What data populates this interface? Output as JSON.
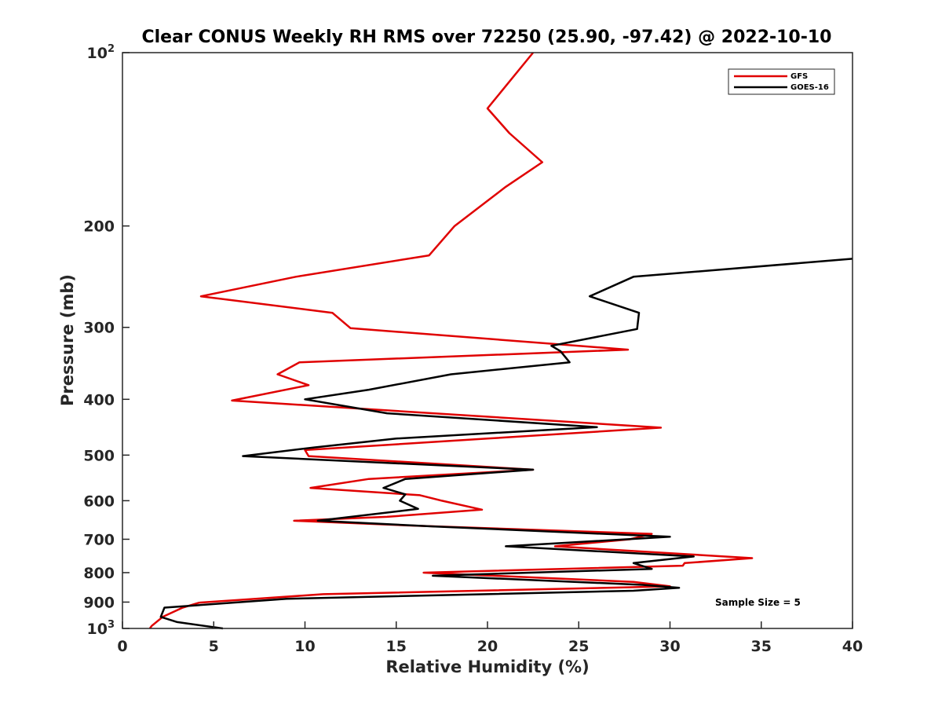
{
  "chart_data": {
    "type": "line",
    "title": "Clear CONUS Weekly RH RMS over 72250 (25.90, -97.42) @ 2022-10-10",
    "xlabel": "Relative Humidity (%)",
    "ylabel": "Pressure (mb)",
    "xlim": [
      0,
      40
    ],
    "ylim": [
      100,
      1000
    ],
    "yscale": "log",
    "y_reversed": true,
    "grid": false,
    "legend_position": "top-right",
    "x_ticks": [
      "0",
      "5",
      "10",
      "15",
      "20",
      "25",
      "30",
      "35",
      "40"
    ],
    "y_ticks": [
      {
        "value": 100,
        "base": "10",
        "exp": "2"
      },
      {
        "value": 200,
        "label": "200"
      },
      {
        "value": 300,
        "label": "300"
      },
      {
        "value": 400,
        "label": "400"
      },
      {
        "value": 500,
        "label": "500"
      },
      {
        "value": 600,
        "label": "600"
      },
      {
        "value": 700,
        "label": "700"
      },
      {
        "value": 800,
        "label": "800"
      },
      {
        "value": 900,
        "label": "900"
      },
      {
        "value": 1000,
        "base": "10",
        "exp": "3"
      }
    ],
    "annotation": "Sample Size = 5",
    "series": [
      {
        "name": "GFS",
        "color": "#e00000",
        "points": [
          [
            22.5,
            100
          ],
          [
            20.0,
            125
          ],
          [
            21.2,
            138
          ],
          [
            23.0,
            155
          ],
          [
            21.0,
            171
          ],
          [
            18.2,
            200
          ],
          [
            16.8,
            225
          ],
          [
            9.5,
            245
          ],
          [
            4.3,
            265
          ],
          [
            11.5,
            283
          ],
          [
            12.5,
            301
          ],
          [
            27.7,
            328
          ],
          [
            9.7,
            345
          ],
          [
            8.5,
            362
          ],
          [
            10.2,
            378
          ],
          [
            6.0,
            402
          ],
          [
            29.5,
            448
          ],
          [
            20.0,
            468
          ],
          [
            10.0,
            490
          ],
          [
            10.2,
            502
          ],
          [
            22.5,
            530
          ],
          [
            13.5,
            550
          ],
          [
            10.3,
            570
          ],
          [
            16.3,
            587
          ],
          [
            17.5,
            600
          ],
          [
            19.7,
            622
          ],
          [
            14.5,
            640
          ],
          [
            9.4,
            650
          ],
          [
            15.5,
            662
          ],
          [
            29.0,
            685
          ],
          [
            27.8,
            700
          ],
          [
            23.7,
            720
          ],
          [
            34.5,
            755
          ],
          [
            30.8,
            770
          ],
          [
            30.7,
            778
          ],
          [
            16.5,
            800
          ],
          [
            28.0,
            830
          ],
          [
            30.0,
            845
          ],
          [
            11.0,
            872
          ],
          [
            4.2,
            902
          ],
          [
            3.3,
            920
          ],
          [
            2.2,
            955
          ],
          [
            1.6,
            990
          ],
          [
            1.5,
            1000
          ]
        ]
      },
      {
        "name": "GOES-16",
        "color": "#000000",
        "points": [
          [
            40.0,
            228
          ],
          [
            28.0,
            245
          ],
          [
            25.6,
            265
          ],
          [
            28.3,
            283
          ],
          [
            28.2,
            302
          ],
          [
            23.5,
            323
          ],
          [
            24.0,
            330
          ],
          [
            24.5,
            345
          ],
          [
            18.0,
            362
          ],
          [
            13.5,
            385
          ],
          [
            10.0,
            400
          ],
          [
            14.5,
            423
          ],
          [
            26.0,
            447
          ],
          [
            15.0,
            468
          ],
          [
            10.5,
            485
          ],
          [
            6.6,
            502
          ],
          [
            22.5,
            530
          ],
          [
            15.5,
            550
          ],
          [
            14.3,
            570
          ],
          [
            15.5,
            585
          ],
          [
            15.2,
            600
          ],
          [
            16.2,
            620
          ],
          [
            10.7,
            650
          ],
          [
            17.0,
            665
          ],
          [
            30.0,
            693
          ],
          [
            21.0,
            720
          ],
          [
            31.3,
            750
          ],
          [
            28.0,
            770
          ],
          [
            29.0,
            788
          ],
          [
            17.0,
            810
          ],
          [
            28.5,
            840
          ],
          [
            30.5,
            850
          ],
          [
            28.0,
            860
          ],
          [
            9.0,
            888
          ],
          [
            2.3,
            920
          ],
          [
            2.1,
            955
          ],
          [
            3.0,
            975
          ],
          [
            5.5,
            1000
          ]
        ]
      }
    ]
  }
}
